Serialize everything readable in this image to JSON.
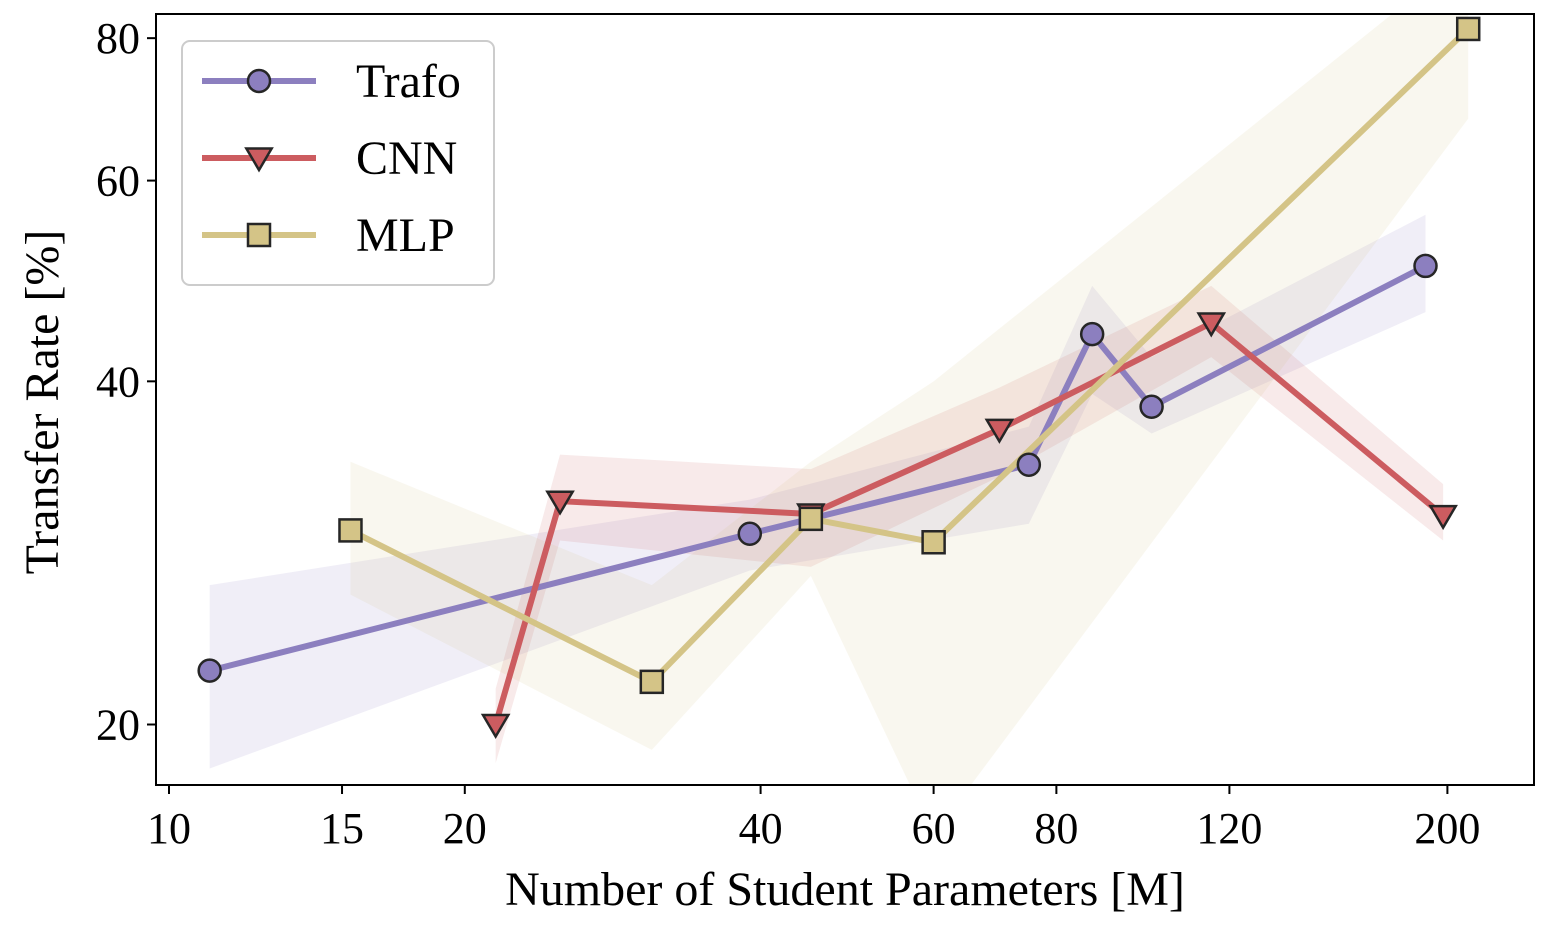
{
  "chart_data": {
    "type": "line",
    "xlabel": "Number of Student Parameters [M]",
    "ylabel": "Transfer Rate [%]",
    "x_scale": "log",
    "y_scale": "log",
    "xlim": [
      9.7,
      245
    ],
    "ylim": [
      17.7,
      84
    ],
    "x_ticks": [
      10,
      15,
      20,
      40,
      60,
      80,
      120,
      200
    ],
    "x_tick_labels": [
      "10",
      "15",
      "20",
      "40",
      "60",
      "80",
      "120",
      "200"
    ],
    "y_ticks": [
      20,
      40,
      60,
      80
    ],
    "y_tick_labels": [
      "20",
      "40",
      "60",
      "80"
    ],
    "grid": false,
    "legend_position": "top-left",
    "series": [
      {
        "name": "Trafo",
        "color": "#8c7fbf",
        "marker": "circle",
        "x": [
          11,
          39,
          75,
          87,
          100,
          190
        ],
        "y": [
          22.3,
          29.4,
          33.8,
          44.0,
          38.0,
          50.5
        ],
        "band_lower": [
          18.3,
          27.3,
          30.0,
          39.0,
          36.0,
          46.0
        ],
        "band_upper": [
          26.5,
          31.5,
          36.5,
          48.5,
          42.0,
          56.0
        ]
      },
      {
        "name": "CNN",
        "color": "#cc5c60",
        "marker": "triangle-down",
        "x": [
          21.5,
          25,
          45,
          70,
          115,
          198
        ],
        "y": [
          20.0,
          31.4,
          30.6,
          36.3,
          45.0,
          30.5
        ],
        "band_lower": [
          18.5,
          29.0,
          27.5,
          33.0,
          42.0,
          29.0
        ],
        "band_upper": [
          21.5,
          34.5,
          33.5,
          39.5,
          48.5,
          32.5
        ]
      },
      {
        "name": "MLP",
        "color": "#d4c487",
        "marker": "square",
        "x": [
          15.3,
          31,
          45,
          60,
          210
        ],
        "y": [
          29.6,
          21.8,
          30.3,
          28.9,
          81.5
        ],
        "band_lower": [
          26.0,
          19.0,
          27.0,
          16.0,
          68.0
        ],
        "band_upper": [
          34.0,
          26.5,
          34.0,
          40.0,
          95.0
        ]
      }
    ]
  }
}
